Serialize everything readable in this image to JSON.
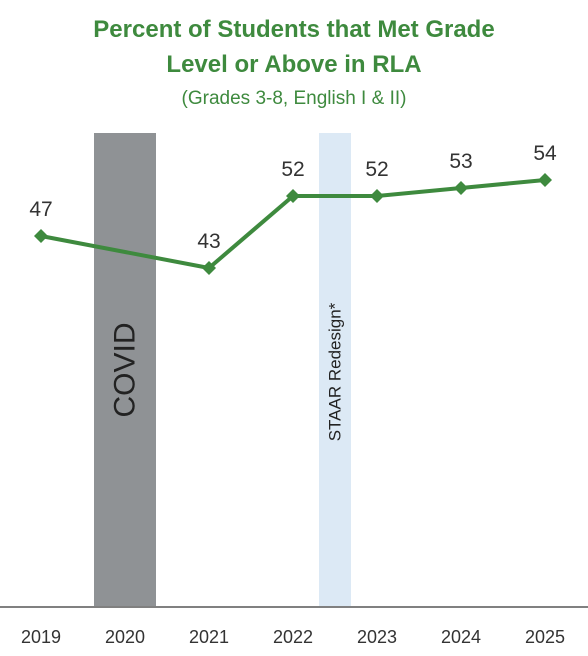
{
  "chart_data": {
    "type": "line",
    "title_lines": [
      "Percent of Students that Met Grade",
      "Level or Above in RLA"
    ],
    "subtitle": "(Grades 3-8, English I & II)",
    "categories": [
      "2019",
      "2020",
      "2021",
      "2022",
      "2023",
      "2024",
      "2025"
    ],
    "series": [
      {
        "values": [
          47,
          null,
          43,
          52,
          52,
          53,
          54
        ],
        "color": "#3e8a3e"
      }
    ],
    "data_labels": [
      "47",
      "",
      "43",
      "52",
      "52",
      "53",
      "54"
    ],
    "ylim": [
      0,
      60
    ],
    "grid": false,
    "legend": "none",
    "bands": [
      {
        "label": "COVID",
        "from": "2020",
        "to": "2020",
        "color": "#8f9295"
      },
      {
        "label": "STAAR Redesign*",
        "from": "2022",
        "to": "2023",
        "color": "#dce9f5"
      }
    ],
    "axis_color": "#808080"
  }
}
